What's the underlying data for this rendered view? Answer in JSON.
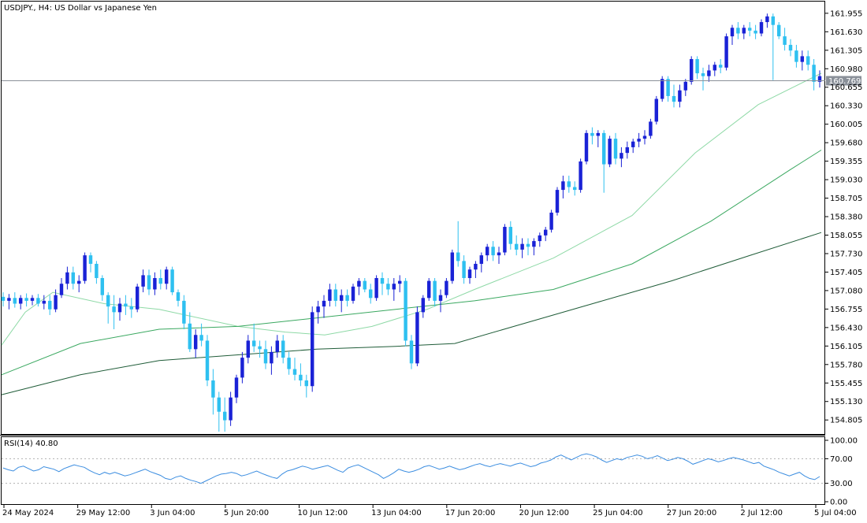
{
  "chart_data": {
    "type": "candlestick",
    "symbol_title": "USDJPY., H4:  US Dollar vs Japanese Yen",
    "current_price": "160.769",
    "price_axis": {
      "ylim": [
        154.6,
        162.05
      ],
      "ticks": [
        "161.955",
        "161.630",
        "161.305",
        "160.980",
        "160.655",
        "160.330",
        "160.005",
        "159.680",
        "159.355",
        "159.030",
        "158.705",
        "158.380",
        "158.055",
        "157.730",
        "157.405",
        "157.080",
        "156.755",
        "156.430",
        "156.105",
        "155.780",
        "155.455",
        "155.130",
        "154.805"
      ]
    },
    "time_axis": {
      "labels": [
        "24 May 2024",
        "29 May 12:00",
        "3 Jun 04:00",
        "5 Jun 20:00",
        "10 Jun 12:00",
        "13 Jun 04:00",
        "17 Jun 20:00",
        "20 Jun 12:00",
        "25 Jun 04:00",
        "27 Jun 20:00",
        "2 Jul 12:00",
        "5 Jul 04:00"
      ]
    },
    "candles": {
      "values": [
        [
          156.97,
          157.05,
          156.8,
          156.9
        ],
        [
          156.9,
          157.02,
          156.75,
          156.95
        ],
        [
          156.95,
          157.05,
          156.78,
          156.85
        ],
        [
          156.85,
          157.0,
          156.75,
          156.95
        ],
        [
          156.95,
          157.03,
          156.8,
          156.9
        ],
        [
          156.9,
          157.0,
          156.82,
          156.95
        ],
        [
          156.95,
          157.02,
          156.8,
          156.85
        ],
        [
          156.85,
          157.0,
          156.75,
          156.9
        ],
        [
          156.9,
          157.0,
          156.65,
          156.75
        ],
        [
          156.75,
          157.1,
          156.7,
          157.0
        ],
        [
          157.0,
          157.3,
          156.95,
          157.2
        ],
        [
          157.2,
          157.5,
          157.1,
          157.4
        ],
        [
          157.4,
          157.5,
          157.1,
          157.2
        ],
        [
          157.2,
          157.35,
          157.05,
          157.25
        ],
        [
          157.25,
          157.75,
          157.2,
          157.7
        ],
        [
          157.7,
          157.75,
          157.4,
          157.55
        ],
        [
          157.55,
          157.6,
          157.2,
          157.3
        ],
        [
          157.3,
          157.35,
          156.9,
          157.0
        ],
        [
          157.0,
          157.05,
          156.5,
          156.8
        ],
        [
          156.8,
          157.0,
          156.4,
          156.7
        ],
        [
          156.7,
          156.95,
          156.55,
          156.85
        ],
        [
          156.85,
          157.0,
          156.65,
          156.8
        ],
        [
          156.8,
          156.95,
          156.6,
          156.75
        ],
        [
          156.75,
          157.2,
          156.7,
          157.15
        ],
        [
          157.15,
          157.45,
          157.05,
          157.35
        ],
        [
          157.35,
          157.45,
          157.0,
          157.1
        ],
        [
          157.1,
          157.4,
          157.0,
          157.3
        ],
        [
          157.3,
          157.45,
          157.1,
          157.2
        ],
        [
          157.2,
          157.5,
          157.1,
          157.45
        ],
        [
          157.45,
          157.5,
          157.0,
          157.05
        ],
        [
          157.05,
          157.1,
          156.8,
          156.9
        ],
        [
          156.9,
          157.0,
          156.4,
          156.5
        ],
        [
          156.5,
          156.7,
          156.0,
          156.05
        ],
        [
          156.05,
          156.4,
          155.9,
          156.3
        ],
        [
          156.3,
          156.5,
          156.1,
          156.2
        ],
        [
          156.2,
          156.3,
          155.4,
          155.5
        ],
        [
          155.5,
          155.7,
          154.9,
          155.2
        ],
        [
          155.2,
          155.3,
          154.6,
          154.95
        ],
        [
          154.95,
          155.2,
          154.6,
          154.8
        ],
        [
          154.8,
          155.3,
          154.7,
          155.2
        ],
        [
          155.2,
          155.6,
          155.1,
          155.55
        ],
        [
          155.55,
          156.0,
          155.45,
          155.9
        ],
        [
          155.9,
          156.3,
          155.8,
          156.2
        ],
        [
          156.2,
          156.5,
          156.0,
          156.1
        ],
        [
          156.1,
          156.2,
          155.9,
          156.05
        ],
        [
          156.05,
          156.2,
          155.7,
          155.8
        ],
        [
          155.8,
          156.1,
          155.6,
          156.0
        ],
        [
          156.0,
          156.3,
          155.9,
          156.2
        ],
        [
          156.2,
          156.3,
          155.8,
          155.9
        ],
        [
          155.9,
          156.0,
          155.6,
          155.7
        ],
        [
          155.7,
          155.9,
          155.5,
          155.6
        ],
        [
          155.6,
          155.8,
          155.4,
          155.5
        ],
        [
          155.5,
          155.6,
          155.2,
          155.4
        ],
        [
          155.4,
          156.8,
          155.3,
          156.7
        ],
        [
          156.7,
          156.9,
          156.5,
          156.8
        ],
        [
          156.8,
          157.0,
          156.6,
          156.9
        ],
        [
          156.9,
          157.2,
          156.8,
          157.1
        ],
        [
          157.1,
          157.2,
          156.8,
          156.9
        ],
        [
          156.9,
          157.1,
          156.7,
          157.0
        ],
        [
          157.0,
          157.1,
          156.8,
          156.9
        ],
        [
          156.9,
          157.2,
          156.85,
          157.15
        ],
        [
          157.15,
          157.3,
          157.0,
          157.25
        ],
        [
          157.25,
          157.3,
          157.05,
          157.1
        ],
        [
          157.1,
          157.2,
          156.85,
          156.95
        ],
        [
          156.95,
          157.35,
          156.9,
          157.3
        ],
        [
          157.3,
          157.4,
          157.0,
          157.2
        ],
        [
          157.2,
          157.3,
          157.0,
          157.1
        ],
        [
          157.1,
          157.3,
          156.9,
          157.2
        ],
        [
          157.2,
          157.35,
          157.05,
          157.25
        ],
        [
          157.25,
          157.3,
          156.1,
          156.2
        ],
        [
          156.2,
          156.3,
          155.7,
          155.8
        ],
        [
          155.8,
          156.8,
          155.75,
          156.7
        ],
        [
          156.7,
          157.0,
          156.6,
          156.95
        ],
        [
          156.95,
          157.3,
          156.9,
          157.25
        ],
        [
          157.25,
          157.3,
          156.8,
          156.9
        ],
        [
          156.9,
          157.1,
          156.7,
          157.0
        ],
        [
          157.0,
          157.3,
          156.95,
          157.25
        ],
        [
          157.25,
          157.8,
          157.2,
          157.75
        ],
        [
          157.75,
          158.3,
          157.5,
          157.6
        ],
        [
          157.6,
          157.7,
          157.2,
          157.3
        ],
        [
          157.3,
          157.5,
          157.2,
          157.45
        ],
        [
          157.45,
          157.6,
          157.3,
          157.55
        ],
        [
          157.55,
          157.75,
          157.4,
          157.7
        ],
        [
          157.7,
          157.9,
          157.6,
          157.85
        ],
        [
          157.85,
          157.95,
          157.6,
          157.7
        ],
        [
          157.7,
          157.85,
          157.55,
          157.75
        ],
        [
          157.75,
          158.25,
          157.7,
          158.2
        ],
        [
          158.2,
          158.3,
          157.8,
          157.9
        ],
        [
          157.9,
          158.05,
          157.7,
          157.8
        ],
        [
          157.8,
          158.0,
          157.65,
          157.9
        ],
        [
          157.9,
          158.0,
          157.7,
          157.85
        ],
        [
          157.85,
          158.0,
          157.7,
          157.95
        ],
        [
          157.95,
          158.1,
          157.85,
          158.05
        ],
        [
          158.05,
          158.2,
          157.95,
          158.15
        ],
        [
          158.15,
          158.5,
          158.1,
          158.45
        ],
        [
          158.45,
          158.9,
          158.4,
          158.85
        ],
        [
          158.85,
          159.1,
          158.7,
          159.0
        ],
        [
          159.0,
          159.1,
          158.8,
          158.9
        ],
        [
          158.9,
          159.0,
          158.75,
          158.85
        ],
        [
          158.85,
          159.4,
          158.8,
          159.35
        ],
        [
          159.35,
          159.9,
          159.3,
          159.85
        ],
        [
          159.85,
          159.95,
          159.65,
          159.8
        ],
        [
          159.8,
          159.9,
          159.6,
          159.85
        ],
        [
          159.85,
          159.9,
          158.8,
          159.3
        ],
        [
          159.3,
          159.8,
          159.25,
          159.75
        ],
        [
          159.75,
          159.85,
          159.3,
          159.4
        ],
        [
          159.4,
          159.6,
          159.25,
          159.5
        ],
        [
          159.5,
          159.7,
          159.4,
          159.6
        ],
        [
          159.6,
          159.75,
          159.5,
          159.7
        ],
        [
          159.7,
          159.85,
          159.6,
          159.75
        ],
        [
          159.75,
          159.9,
          159.65,
          159.8
        ],
        [
          159.8,
          160.1,
          159.75,
          160.05
        ],
        [
          160.05,
          160.5,
          160.0,
          160.45
        ],
        [
          160.45,
          160.85,
          160.4,
          160.8
        ],
        [
          160.8,
          160.85,
          160.4,
          160.5
        ],
        [
          160.5,
          160.7,
          160.3,
          160.4
        ],
        [
          160.4,
          160.7,
          160.3,
          160.6
        ],
        [
          160.6,
          160.8,
          160.5,
          160.75
        ],
        [
          160.75,
          161.2,
          160.7,
          161.15
        ],
        [
          161.15,
          161.2,
          160.8,
          160.9
        ],
        [
          160.9,
          161.0,
          160.6,
          160.85
        ],
        [
          160.85,
          161.05,
          160.75,
          160.95
        ],
        [
          160.95,
          161.1,
          160.85,
          161.05
        ],
        [
          161.05,
          161.15,
          160.9,
          161.0
        ],
        [
          161.0,
          161.6,
          160.95,
          161.55
        ],
        [
          161.55,
          161.75,
          161.4,
          161.7
        ],
        [
          161.7,
          161.8,
          161.5,
          161.6
        ],
        [
          161.6,
          161.75,
          161.5,
          161.7
        ],
        [
          161.7,
          161.8,
          161.55,
          161.65
        ],
        [
          161.65,
          161.75,
          161.5,
          161.6
        ],
        [
          161.6,
          161.85,
          161.55,
          161.8
        ],
        [
          161.8,
          161.95,
          161.7,
          161.9
        ],
        [
          161.9,
          161.95,
          160.78,
          161.75
        ],
        [
          161.75,
          161.8,
          161.5,
          161.55
        ],
        [
          161.55,
          161.7,
          161.3,
          161.4
        ],
        [
          161.4,
          161.5,
          161.2,
          161.3
        ],
        [
          161.3,
          161.4,
          161.0,
          161.1
        ],
        [
          161.1,
          161.3,
          160.95,
          161.2
        ],
        [
          161.2,
          161.3,
          160.95,
          161.05
        ],
        [
          161.05,
          161.15,
          160.6,
          160.75
        ],
        [
          160.75,
          160.95,
          160.65,
          160.85
        ]
      ]
    },
    "moving_averages": [
      {
        "name": "",
        "color": "#8ed9a6",
        "points": [
          [
            0,
            156.12
          ],
          [
            30,
            156.7
          ],
          [
            65,
            157.05
          ],
          [
            130,
            156.85
          ],
          [
            200,
            156.75
          ],
          [
            300,
            156.45
          ],
          [
            360,
            156.35
          ],
          [
            410,
            156.3
          ],
          [
            470,
            156.45
          ],
          [
            540,
            156.75
          ],
          [
            600,
            157.1
          ],
          [
            700,
            157.65
          ],
          [
            800,
            158.4
          ],
          [
            880,
            159.5
          ],
          [
            960,
            160.35
          ],
          [
            1040,
            160.9
          ]
        ]
      },
      {
        "name": "",
        "color": "#3aa860",
        "points": [
          [
            0,
            155.6
          ],
          [
            100,
            156.15
          ],
          [
            200,
            156.4
          ],
          [
            300,
            156.45
          ],
          [
            400,
            156.6
          ],
          [
            500,
            156.75
          ],
          [
            600,
            156.9
          ],
          [
            700,
            157.1
          ],
          [
            800,
            157.55
          ],
          [
            900,
            158.3
          ],
          [
            1000,
            159.2
          ],
          [
            1040,
            159.55
          ]
        ]
      },
      {
        "name": "",
        "color": "#1f5c38",
        "points": [
          [
            0,
            155.25
          ],
          [
            100,
            155.6
          ],
          [
            200,
            155.85
          ],
          [
            300,
            155.95
          ],
          [
            400,
            156.05
          ],
          [
            500,
            156.1
          ],
          [
            575,
            156.15
          ],
          [
            650,
            156.45
          ],
          [
            750,
            156.85
          ],
          [
            850,
            157.25
          ],
          [
            950,
            157.7
          ],
          [
            1040,
            158.1
          ]
        ]
      }
    ],
    "rsi": {
      "label": "RSI(14) 40.80",
      "levels": [
        "100.00",
        "70.00",
        "30.00",
        "0.00"
      ],
      "dashed_levels": [
        70,
        30
      ],
      "color": "#3b8de0",
      "values": [
        55,
        52,
        50,
        56,
        58,
        54,
        50,
        52,
        57,
        55,
        53,
        49,
        54,
        57,
        60,
        58,
        56,
        51,
        47,
        44,
        48,
        45,
        48,
        45,
        42,
        44,
        47,
        50,
        53,
        49,
        46,
        43,
        38,
        36,
        40,
        42,
        38,
        35,
        33,
        30,
        34,
        38,
        42,
        45,
        46,
        48,
        46,
        42,
        44,
        47,
        50,
        46,
        43,
        40,
        38,
        45,
        50,
        52,
        55,
        58,
        56,
        53,
        55,
        57,
        59,
        55,
        51,
        48,
        55,
        58,
        60,
        56,
        52,
        48,
        44,
        38,
        42,
        47,
        53,
        50,
        48,
        50,
        53,
        57,
        59,
        56,
        53,
        55,
        58,
        55,
        52,
        54,
        57,
        60,
        62,
        59,
        57,
        60,
        62,
        60,
        58,
        61,
        63,
        60,
        57,
        59,
        63,
        65,
        68,
        73,
        76,
        72,
        68,
        72,
        76,
        78,
        76,
        73,
        68,
        64,
        67,
        70,
        68,
        72,
        74,
        76,
        74,
        70,
        72,
        75,
        71,
        67,
        69,
        72,
        70,
        66,
        61,
        64,
        67,
        70,
        68,
        65,
        67,
        70,
        72,
        70,
        68,
        65,
        62,
        64,
        58,
        55,
        52,
        48,
        45,
        42,
        45,
        48,
        42,
        38,
        36,
        41
      ]
    }
  }
}
